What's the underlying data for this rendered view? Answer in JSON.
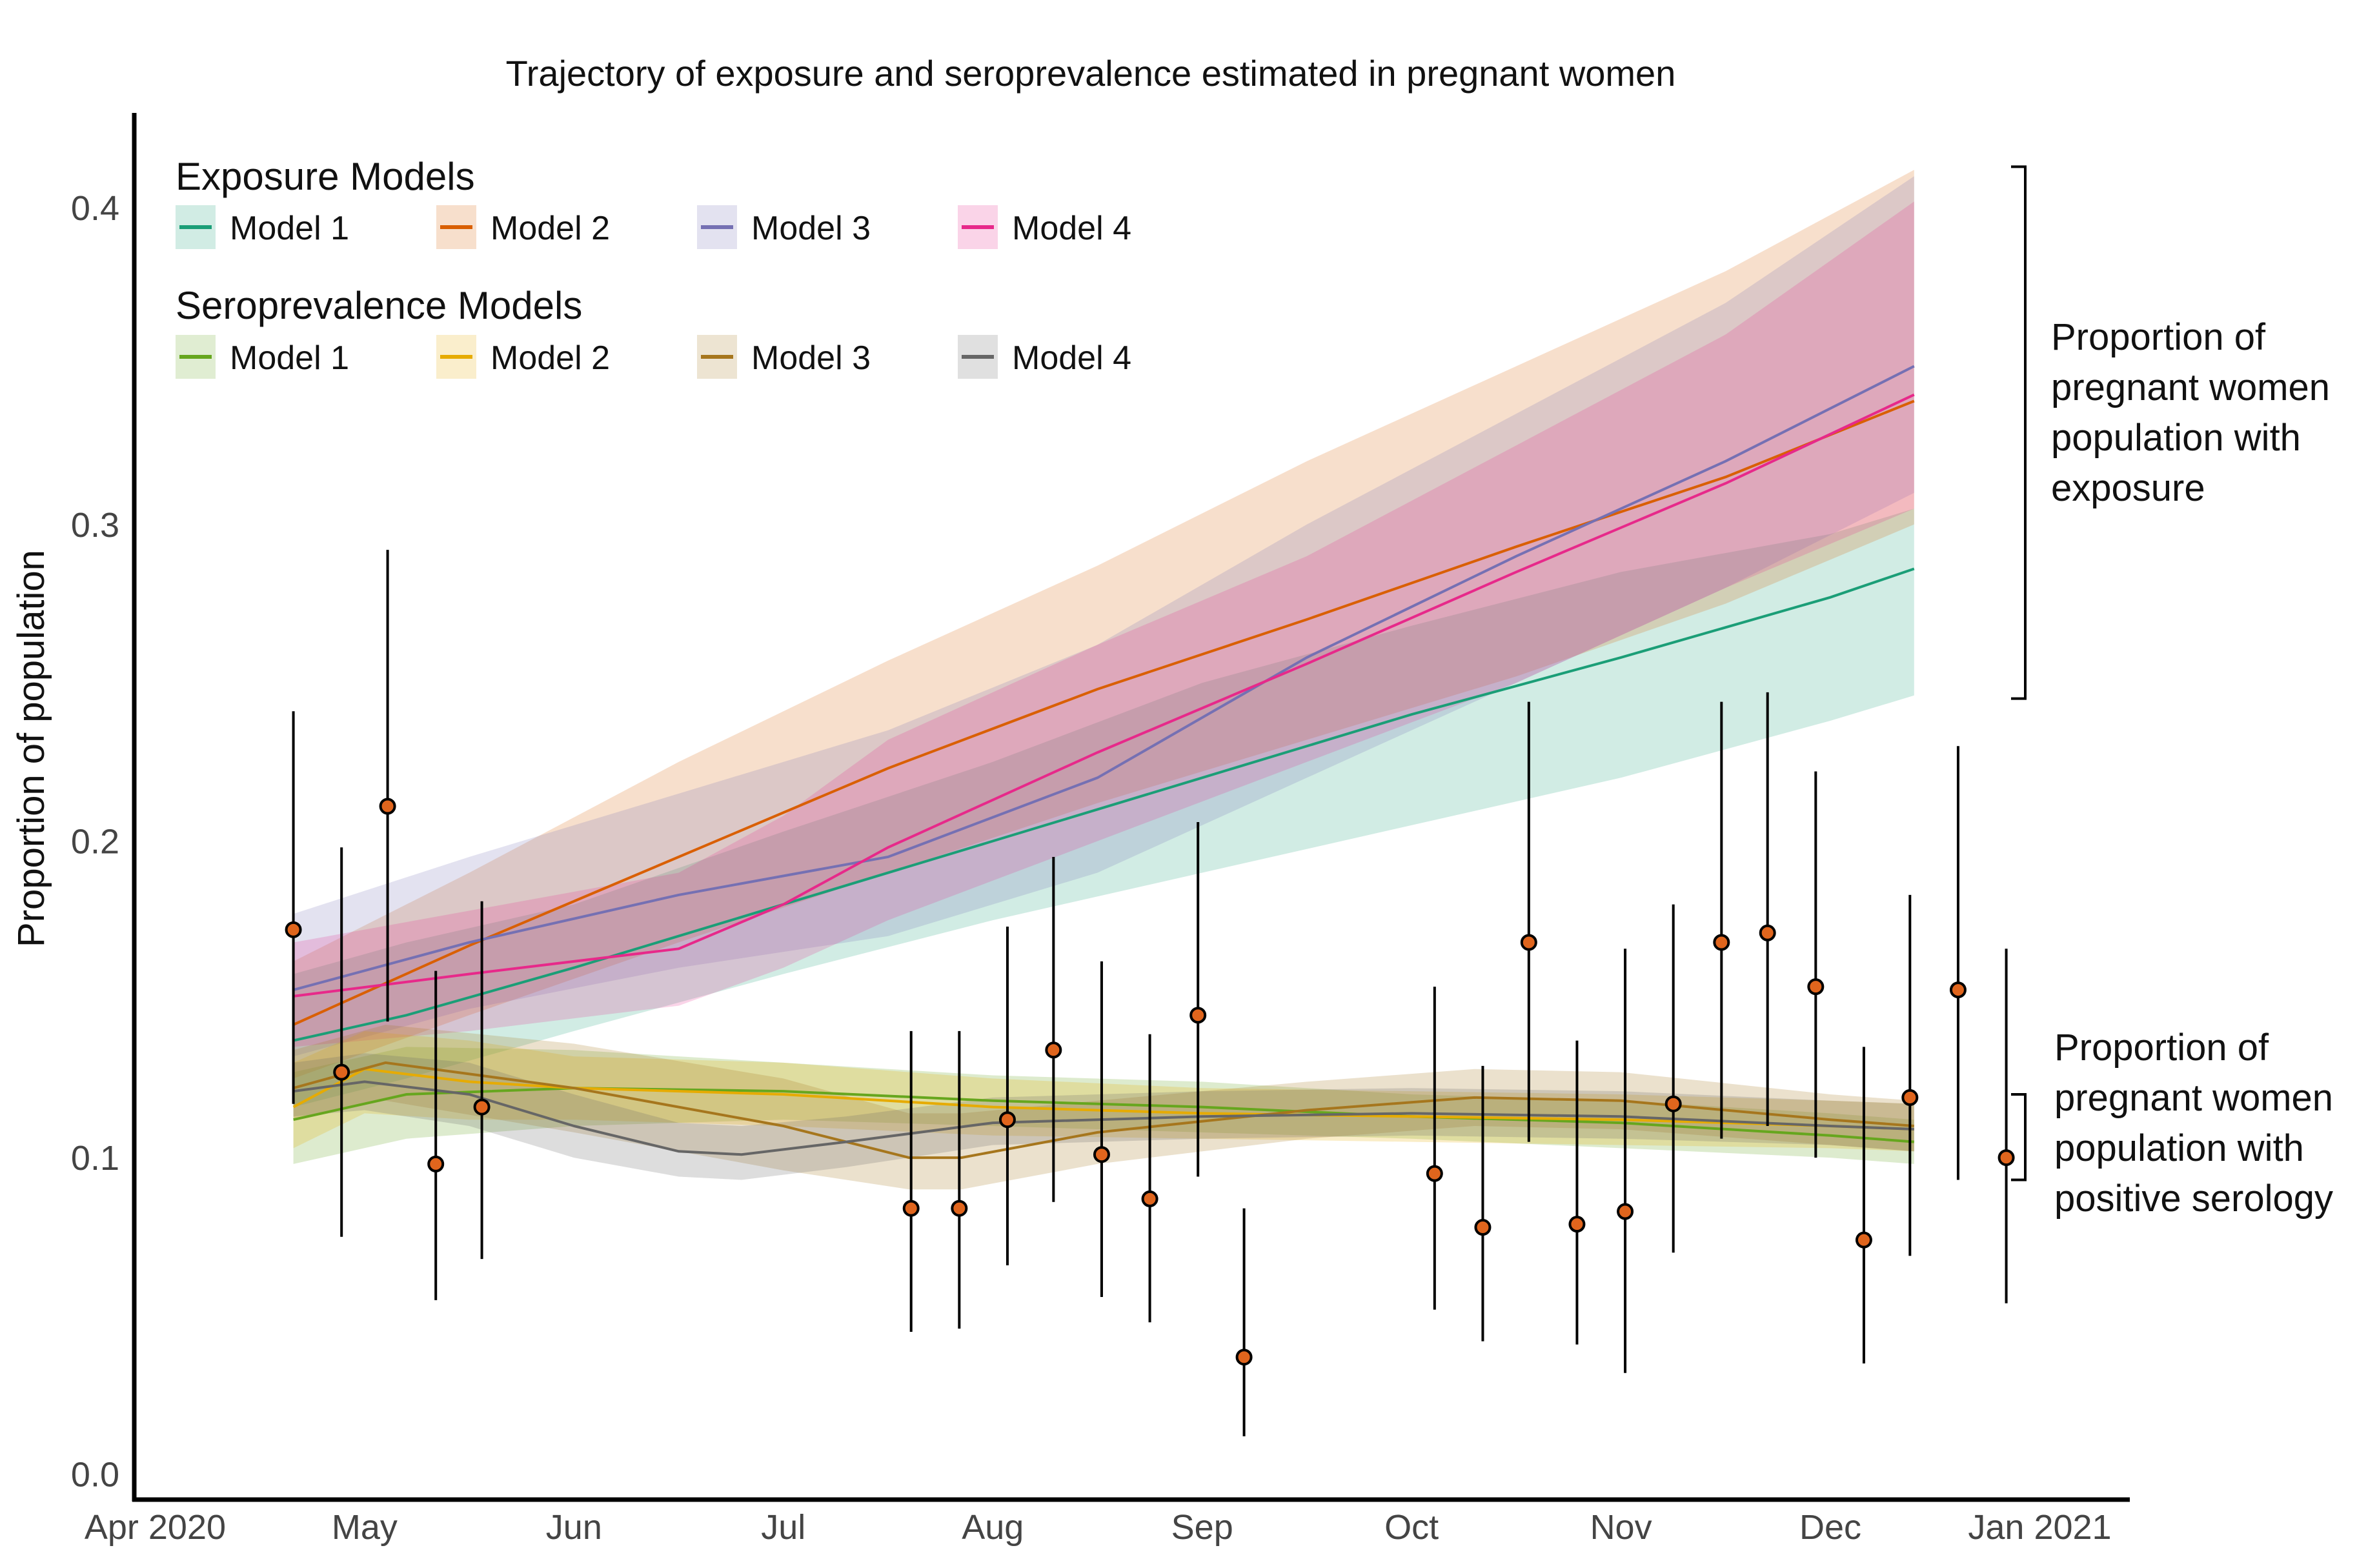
{
  "chart_data": {
    "type": "line",
    "title": "Trajectory of exposure and seroprevalence estimated in pregnant women",
    "xlabel": "",
    "ylabel": "Proportion of population",
    "x_ticks": [
      {
        "label": "Apr 2020",
        "month": 0
      },
      {
        "label": "May",
        "month": 1
      },
      {
        "label": "Jun",
        "month": 2
      },
      {
        "label": "Jul",
        "month": 3
      },
      {
        "label": "Aug",
        "month": 4
      },
      {
        "label": "Sep",
        "month": 5
      },
      {
        "label": "Oct",
        "month": 6
      },
      {
        "label": "Nov",
        "month": 7
      },
      {
        "label": "Dec",
        "month": 8
      },
      {
        "label": "Jan 2021",
        "month": 9
      }
    ],
    "xlim": [
      -0.1,
      9.43
    ],
    "y_ticks": [
      {
        "label": "0.0",
        "value": 0.0
      },
      {
        "label": "0.1",
        "value": 0.1
      },
      {
        "label": "0.2",
        "value": 0.2
      },
      {
        "label": "0.3",
        "value": 0.3
      },
      {
        "label": "0.4",
        "value": 0.4
      }
    ],
    "ylim": [
      -0.008,
      0.43
    ],
    "legend": {
      "exposure_title": "Exposure Models",
      "seroprevalence_title": "Seroprevalence Models"
    },
    "exposure_series": [
      {
        "name": "Model 1",
        "color": "#1b9e77",
        "x": [
          0.66,
          1.2,
          2,
          3,
          4,
          5,
          6,
          7,
          8,
          8.4
        ],
        "mean": [
          0.137,
          0.145,
          0.16,
          0.18,
          0.2,
          0.22,
          0.24,
          0.258,
          0.277,
          0.286
        ],
        "lower": [
          0.116,
          0.125,
          0.14,
          0.158,
          0.175,
          0.19,
          0.205,
          0.22,
          0.238,
          0.246
        ],
        "upper": [
          0.158,
          0.168,
          0.18,
          0.203,
          0.225,
          0.25,
          0.268,
          0.285,
          0.297,
          0.305
        ]
      },
      {
        "name": "Model 2",
        "color": "#d95f02",
        "x": [
          0.66,
          1.5,
          2.5,
          3.5,
          4.5,
          5.5,
          6.5,
          7.5,
          8.4
        ],
        "mean": [
          0.142,
          0.167,
          0.195,
          0.223,
          0.248,
          0.27,
          0.293,
          0.315,
          0.339
        ],
        "lower": [
          0.125,
          0.145,
          0.168,
          0.19,
          0.212,
          0.232,
          0.252,
          0.275,
          0.3
        ],
        "upper": [
          0.162,
          0.19,
          0.225,
          0.257,
          0.287,
          0.32,
          0.35,
          0.38,
          0.412
        ]
      },
      {
        "name": "Model 3",
        "color": "#7570b3",
        "x": [
          0.66,
          1.5,
          2.5,
          3.5,
          4.5,
          5.5,
          6.5,
          7.5,
          8.4
        ],
        "mean": [
          0.153,
          0.168,
          0.183,
          0.195,
          0.22,
          0.258,
          0.29,
          0.32,
          0.35
        ],
        "lower": [
          0.132,
          0.147,
          0.16,
          0.17,
          0.19,
          0.22,
          0.25,
          0.28,
          0.31
        ],
        "upper": [
          0.177,
          0.195,
          0.215,
          0.235,
          0.262,
          0.3,
          0.335,
          0.37,
          0.41
        ]
      },
      {
        "name": "Model 4",
        "color": "#e7298a",
        "x": [
          0.66,
          1.5,
          2.5,
          3,
          3.5,
          4.5,
          5.5,
          6.5,
          7.5,
          8.4
        ],
        "mean": [
          0.151,
          0.158,
          0.166,
          0.18,
          0.198,
          0.228,
          0.256,
          0.285,
          0.313,
          0.341
        ],
        "lower": [
          0.135,
          0.14,
          0.148,
          0.16,
          0.175,
          0.2,
          0.225,
          0.25,
          0.28,
          0.305
        ],
        "upper": [
          0.168,
          0.178,
          0.19,
          0.208,
          0.232,
          0.262,
          0.29,
          0.325,
          0.36,
          0.402
        ]
      }
    ],
    "seroprevalence_series": [
      {
        "name": "Model 1",
        "color": "#66a61e",
        "x": [
          0.66,
          1.2,
          2,
          3,
          4,
          5,
          6,
          7,
          8,
          8.4
        ],
        "mean": [
          0.112,
          0.12,
          0.122,
          0.121,
          0.118,
          0.116,
          0.113,
          0.111,
          0.107,
          0.105
        ],
        "lower": [
          0.098,
          0.106,
          0.11,
          0.112,
          0.11,
          0.108,
          0.106,
          0.103,
          0.1,
          0.098
        ],
        "upper": [
          0.127,
          0.135,
          0.134,
          0.13,
          0.126,
          0.124,
          0.12,
          0.118,
          0.114,
          0.112
        ]
      },
      {
        "name": "Model 2",
        "color": "#e6ab02",
        "x": [
          0.66,
          1,
          1.5,
          2,
          3,
          4,
          5,
          6,
          7,
          8,
          8.4
        ],
        "mean": [
          0.116,
          0.128,
          0.124,
          0.122,
          0.12,
          0.116,
          0.114,
          0.113,
          0.112,
          0.11,
          0.109
        ],
        "lower": [
          0.103,
          0.114,
          0.112,
          0.112,
          0.11,
          0.107,
          0.106,
          0.105,
          0.104,
          0.103,
          0.102
        ],
        "upper": [
          0.13,
          0.14,
          0.137,
          0.132,
          0.13,
          0.125,
          0.122,
          0.121,
          0.12,
          0.118,
          0.117
        ]
      },
      {
        "name": "Model 3",
        "color": "#a6761d",
        "x": [
          0.66,
          1.1,
          2,
          3,
          3.6,
          3.85,
          4.5,
          5.5,
          6.3,
          7,
          8,
          8.4
        ],
        "mean": [
          0.122,
          0.13,
          0.122,
          0.11,
          0.1,
          0.1,
          0.108,
          0.115,
          0.119,
          0.118,
          0.112,
          0.11
        ],
        "lower": [
          0.112,
          0.118,
          0.108,
          0.096,
          0.09,
          0.09,
          0.098,
          0.106,
          0.11,
          0.109,
          0.104,
          0.102
        ],
        "upper": [
          0.134,
          0.142,
          0.136,
          0.125,
          0.114,
          0.114,
          0.118,
          0.124,
          0.128,
          0.127,
          0.12,
          0.118
        ]
      },
      {
        "name": "Model 4",
        "color": "#666666",
        "x": [
          0.66,
          1,
          1.5,
          2,
          2.5,
          2.8,
          3.3,
          4,
          5,
          6,
          7,
          8,
          8.4
        ],
        "mean": [
          0.121,
          0.124,
          0.12,
          0.11,
          0.102,
          0.101,
          0.105,
          0.111,
          0.113,
          0.114,
          0.113,
          0.11,
          0.109
        ],
        "lower": [
          0.113,
          0.115,
          0.11,
          0.1,
          0.094,
          0.093,
          0.097,
          0.104,
          0.106,
          0.107,
          0.106,
          0.104,
          0.102
        ],
        "upper": [
          0.13,
          0.133,
          0.13,
          0.12,
          0.111,
          0.11,
          0.113,
          0.119,
          0.121,
          0.122,
          0.121,
          0.118,
          0.117
        ]
      }
    ],
    "observations": {
      "x": [
        0.66,
        0.89,
        1.11,
        1.34,
        1.56,
        3.61,
        3.84,
        4.07,
        4.29,
        4.52,
        4.75,
        4.98,
        5.2,
        6.11,
        6.34,
        6.56,
        6.79,
        7.02,
        7.25,
        7.48,
        7.7,
        7.93,
        8.16,
        8.38,
        8.61,
        8.84
      ],
      "y": [
        0.172,
        0.127,
        0.211,
        0.098,
        0.116,
        0.084,
        0.084,
        0.112,
        0.134,
        0.101,
        0.087,
        0.145,
        0.037,
        0.095,
        0.078,
        0.168,
        0.079,
        0.083,
        0.117,
        0.168,
        0.171,
        0.154,
        0.074,
        0.119,
        0.153,
        0.1
      ],
      "lower": [
        0.117,
        0.075,
        0.143,
        0.055,
        0.068,
        0.045,
        0.046,
        0.066,
        0.086,
        0.056,
        0.048,
        0.094,
        0.012,
        0.052,
        0.042,
        0.105,
        0.041,
        0.032,
        0.07,
        0.106,
        0.11,
        0.1,
        0.035,
        0.069,
        0.093,
        0.054
      ],
      "upper": [
        0.241,
        0.198,
        0.292,
        0.159,
        0.181,
        0.14,
        0.14,
        0.173,
        0.195,
        0.162,
        0.139,
        0.206,
        0.084,
        0.154,
        0.129,
        0.244,
        0.137,
        0.166,
        0.18,
        0.244,
        0.247,
        0.222,
        0.135,
        0.183,
        0.23,
        0.166
      ],
      "color": "#e0651d"
    },
    "annotations": {
      "exposure_lines": [
        "Proportion of",
        "pregnant women",
        "population with",
        "exposure"
      ],
      "serology_lines": [
        "Proportion of",
        "pregnant women",
        "population with",
        "positive serology"
      ],
      "exposure_range": [
        0.245,
        0.413
      ],
      "serology_range": [
        0.093,
        0.12
      ]
    }
  }
}
